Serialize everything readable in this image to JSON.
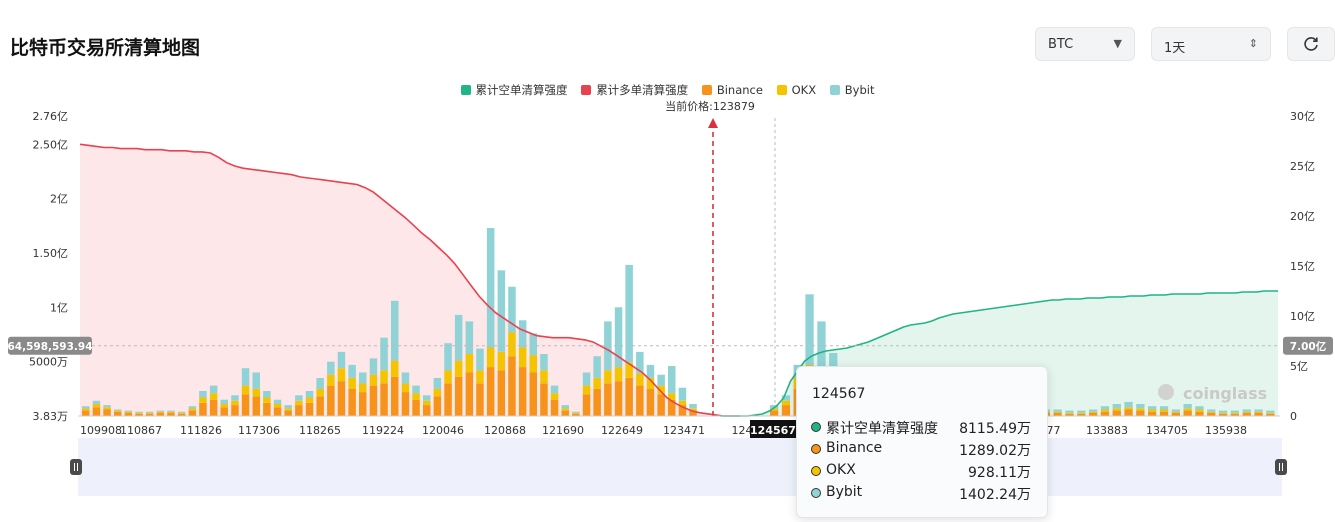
{
  "header": {
    "title": "比特币交易所清算地图",
    "symbol": "BTC",
    "period": "1天",
    "refresh_icon": "refresh-icon"
  },
  "colors": {
    "short_cum": "#20b486",
    "long_cum": "#e8424f",
    "binance": "#f7931a",
    "okx": "#f5c400",
    "bybit": "#8fd3d6"
  },
  "chart_data": {
    "type": "bar",
    "legend": [
      "累计空单清算强度",
      "累计多单清算强度",
      "Binance",
      "OKX",
      "Bybit"
    ],
    "current_price_label": "当前价格:123879",
    "current_price": 123879,
    "x_tick_labels": [
      "109908",
      "110867",
      "111826",
      "117306",
      "118265",
      "119224",
      "120046",
      "120868",
      "121690",
      "122649",
      "123471",
      "124",
      "677",
      "133883",
      "134705",
      "135938"
    ],
    "hover_x_label": "124567",
    "y_left_ticks": [
      "2.76亿",
      "2.50亿",
      "2亿",
      "1.50亿",
      "1亿",
      "5000万",
      "3.83万"
    ],
    "y_left_values": [
      276000000,
      250000000,
      200000000,
      150000000,
      100000000,
      50000000,
      38300
    ],
    "y_right_ticks": [
      "30亿",
      "25亿",
      "20亿",
      "15亿",
      "10亿",
      "5亿",
      "0"
    ],
    "y_right_values": [
      3000000000,
      2500000000,
      2000000000,
      1500000000,
      1000000000,
      500000000,
      0
    ],
    "y_left_range": [
      0,
      276000000
    ],
    "y_right_range": [
      0,
      3000000000
    ],
    "crosshair_left_label": "64,598,593.94",
    "crosshair_right_label": "7.00亿",
    "crosshair_left_value": 64598593.94,
    "crosshair_right_value": 700000000,
    "long_cum_series": [
      2.5,
      2.49,
      2.48,
      2.47,
      2.47,
      2.46,
      2.46,
      2.46,
      2.45,
      2.45,
      2.45,
      2.44,
      2.44,
      2.44,
      2.43,
      2.43,
      2.42,
      2.38,
      2.33,
      2.3,
      2.28,
      2.27,
      2.26,
      2.25,
      2.24,
      2.23,
      2.22,
      2.2,
      2.19,
      2.18,
      2.17,
      2.16,
      2.15,
      2.14,
      2.13,
      2.1,
      2.06,
      2.0,
      1.94,
      1.88,
      1.82,
      1.75,
      1.68,
      1.62,
      1.55,
      1.48,
      1.4,
      1.3,
      1.2,
      1.1,
      1.02,
      0.95,
      0.9,
      0.85,
      0.8,
      0.77,
      0.74,
      0.73,
      0.72,
      0.72,
      0.72,
      0.71,
      0.7,
      0.68,
      0.64,
      0.6,
      0.55,
      0.5,
      0.45,
      0.4,
      0.33,
      0.25,
      0.17,
      0.12,
      0.08,
      0.05,
      0.03,
      0.02,
      0.01,
      0.0,
      0.0,
      0.0
    ],
    "short_cum_series": [
      0.0,
      0.0,
      0.0,
      0.0,
      0.0,
      0.01,
      0.02,
      0.05,
      0.1,
      0.18,
      0.35,
      0.45,
      0.55,
      0.6,
      0.63,
      0.65,
      0.66,
      0.67,
      0.68,
      0.7,
      0.72,
      0.74,
      0.77,
      0.8,
      0.83,
      0.86,
      0.89,
      0.91,
      0.92,
      0.93,
      0.95,
      0.98,
      1.0,
      1.02,
      1.03,
      1.04,
      1.05,
      1.06,
      1.07,
      1.08,
      1.09,
      1.1,
      1.11,
      1.12,
      1.13,
      1.14,
      1.15,
      1.16,
      1.16,
      1.17,
      1.17,
      1.17,
      1.18,
      1.18,
      1.18,
      1.19,
      1.19,
      1.19,
      1.2,
      1.2,
      1.2,
      1.21,
      1.21,
      1.21,
      1.22,
      1.22,
      1.22,
      1.22,
      1.22,
      1.23,
      1.23,
      1.23,
      1.23,
      1.23,
      1.24,
      1.24,
      1.24,
      1.25,
      1.25,
      1.25
    ],
    "bars_left_binance": [
      0.05,
      0.08,
      0.06,
      0.04,
      0.03,
      0.02,
      0.02,
      0.03,
      0.03,
      0.02,
      0.05,
      0.12,
      0.15,
      0.08,
      0.1,
      0.2,
      0.18,
      0.12,
      0.08,
      0.05,
      0.1,
      0.12,
      0.18,
      0.28,
      0.32,
      0.25,
      0.22,
      0.28,
      0.3,
      0.36,
      0.22,
      0.15,
      0.1,
      0.18,
      0.3,
      0.36,
      0.4,
      0.3,
      0.45,
      0.42,
      0.55,
      0.45,
      0.4,
      0.3,
      0.15,
      0.05,
      0.02,
      0.2,
      0.25,
      0.3,
      0.32,
      0.35,
      0.28,
      0.25,
      0.2,
      0.15,
      0.1,
      0.05
    ],
    "bars_left_okx": [
      0.02,
      0.03,
      0.02,
      0.01,
      0.01,
      0.01,
      0.01,
      0.01,
      0.01,
      0.01,
      0.02,
      0.05,
      0.06,
      0.03,
      0.04,
      0.08,
      0.07,
      0.05,
      0.03,
      0.02,
      0.04,
      0.05,
      0.07,
      0.1,
      0.12,
      0.1,
      0.08,
      0.1,
      0.12,
      0.15,
      0.08,
      0.06,
      0.04,
      0.07,
      0.12,
      0.15,
      0.17,
      0.12,
      0.18,
      0.17,
      0.22,
      0.18,
      0.16,
      0.12,
      0.06,
      0.02,
      0.01,
      0.08,
      0.1,
      0.12,
      0.13,
      0.14,
      0.11,
      0.1,
      0.08,
      0.06,
      0.04,
      0.02
    ],
    "bars_left_bybit": [
      0.02,
      0.03,
      0.02,
      0.01,
      0.01,
      0.01,
      0.01,
      0.01,
      0.01,
      0.01,
      0.02,
      0.06,
      0.07,
      0.04,
      0.05,
      0.16,
      0.15,
      0.06,
      0.04,
      0.03,
      0.05,
      0.06,
      0.1,
      0.12,
      0.15,
      0.12,
      0.1,
      0.15,
      0.3,
      0.55,
      0.1,
      0.07,
      0.05,
      0.1,
      0.25,
      0.42,
      0.3,
      0.2,
      1.1,
      0.75,
      0.42,
      0.25,
      0.2,
      0.15,
      0.07,
      0.03,
      0.01,
      0.12,
      0.2,
      0.45,
      0.55,
      0.9,
      0.2,
      0.12,
      0.1,
      0.25,
      0.12,
      0.04
    ],
    "bars_right_binance": [
      0.05,
      0.1,
      0.25,
      0.35,
      0.3,
      0.2,
      0.12,
      0.08,
      0.06,
      0.05,
      0.04,
      0.05,
      0.04,
      0.03,
      0.03,
      0.04,
      0.05,
      0.06,
      0.05,
      0.04,
      0.03,
      0.02,
      0.02,
      0.03,
      0.03,
      0.02,
      0.02,
      0.03,
      0.04,
      0.05,
      0.06,
      0.05,
      0.04,
      0.04,
      0.03,
      0.05,
      0.04,
      0.03,
      0.02,
      0.02,
      0.03,
      0.03,
      0.02
    ],
    "bars_right_okx": [
      0.02,
      0.04,
      0.1,
      0.12,
      0.12,
      0.08,
      0.05,
      0.03,
      0.02,
      0.02,
      0.02,
      0.02,
      0.02,
      0.01,
      0.01,
      0.02,
      0.02,
      0.02,
      0.02,
      0.02,
      0.01,
      0.01,
      0.01,
      0.01,
      0.01,
      0.01,
      0.01,
      0.01,
      0.02,
      0.02,
      0.02,
      0.02,
      0.02,
      0.02,
      0.01,
      0.02,
      0.02,
      0.01,
      0.01,
      0.01,
      0.01,
      0.01,
      0.01
    ],
    "bars_right_bybit": [
      0.03,
      0.05,
      0.12,
      0.65,
      0.45,
      0.3,
      0.12,
      0.07,
      0.05,
      0.04,
      0.03,
      0.04,
      0.03,
      0.02,
      0.02,
      0.03,
      0.04,
      0.05,
      0.04,
      0.03,
      0.02,
      0.02,
      0.02,
      0.02,
      0.02,
      0.02,
      0.02,
      0.02,
      0.03,
      0.04,
      0.05,
      0.04,
      0.03,
      0.03,
      0.02,
      0.04,
      0.03,
      0.02,
      0.02,
      0.02,
      0.02,
      0.02,
      0.02
    ]
  },
  "tooltip": {
    "price": "124567",
    "rows": [
      {
        "name": "累计空单清算强度",
        "value": "8115.49万"
      },
      {
        "name": "Binance",
        "value": "1289.02万"
      },
      {
        "name": "OKX",
        "value": "928.11万"
      },
      {
        "name": "Bybit",
        "value": "1402.24万"
      }
    ]
  },
  "watermark": "coinglass"
}
